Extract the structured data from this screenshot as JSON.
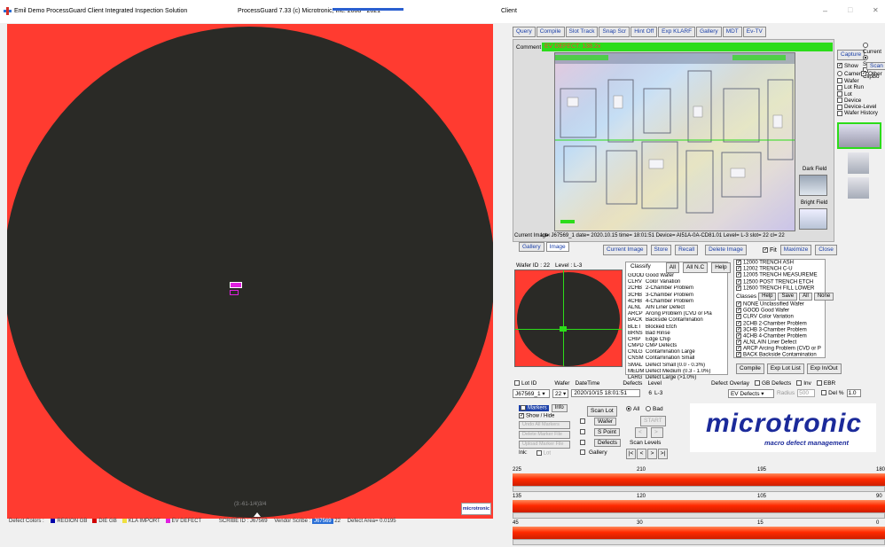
{
  "window": {
    "app_title": "Emil Demo ProcessGuard Client   Integrated Inspection Solution",
    "version_text": "ProcessGuard 7.33 (c) Microtronic, Inc. 2008 - 2021",
    "client_label": "Client",
    "minimize_glyph": "–",
    "maximize_glyph": "□",
    "close_glyph": "✕"
  },
  "wafer_view": {
    "bottom_notch_text": "(3:-61-1/4)3/4",
    "corner_logo": "microtronic"
  },
  "status_bar": {
    "defect_colors_label": "Defect Colors :",
    "legend": [
      {
        "label": "REGION GB",
        "color": "#0000aa"
      },
      {
        "label": "DIE GB",
        "color": "#d00000"
      },
      {
        "label": "KLA IMPORT",
        "color": "#f0e040"
      },
      {
        "label": "EV DEFECT",
        "color": "#e020e0"
      }
    ],
    "scribe_id": "SCRIBE ID : J67569",
    "vendor_scribe_label": "Vendor Scribe :",
    "vendor_scribe_value": "J67569",
    "slot_suffix": "22",
    "defect_area": "Defect Area= 0.0195"
  },
  "toolbar": {
    "buttons": [
      "Query",
      "Compile",
      "Slot Track",
      "Snap Scr",
      "Hint Off",
      "Exp KLARF",
      "Gallery",
      "MDT",
      "Ev-TV"
    ]
  },
  "image_panel": {
    "comment_label": "Comment",
    "comment_value": "EV DEFECT. 138.2x",
    "dark_field_label": "Dark Field",
    "bright_field_label": "Bright Field",
    "current_image_label": "Current Image:",
    "current_image_info": "lot= J67569_1  date= 2020.10.15  time= 18:01:51  Device= AI51A-0A-CD81.01  Level= L-3  slot= 22  cl= 22",
    "tabs": [
      "Gallery",
      "Image"
    ],
    "actions": [
      "Current Image",
      "Store",
      "Recall",
      "Delete Image"
    ],
    "fit_label": "Fit",
    "fit_checked": true,
    "maximize_label": "Maximize",
    "close_label": "Close"
  },
  "right_column": {
    "capture_label": "Capture",
    "options": [
      {
        "label": "Current",
        "checked": false,
        "type": "radio"
      },
      {
        "label": "Screen",
        "checked": true,
        "type": "radio"
      },
      {
        "label": "ClipBo",
        "checked": false,
        "type": "check"
      }
    ],
    "show_label": "Show",
    "show_checked": true,
    "scan_label": "Scan",
    "camera_label": "Camera",
    "other_label": "Other",
    "other_checked": true,
    "list": [
      "Wafer",
      "Lot Run",
      "Lot",
      "Device",
      "Device-Level",
      "Wafer History"
    ]
  },
  "wafer_info": {
    "wafer_id": "Wafer ID : 22",
    "level": "Level : L-3"
  },
  "classify": {
    "title": "Classify",
    "all_label": "All",
    "all_nc_label": "All N.C",
    "help_label": "Help",
    "items": [
      [
        "GOOD",
        "Good Wafer"
      ],
      [
        "CLRV",
        "Color Variation"
      ],
      [
        "2CHB",
        "2-Chamber Problem"
      ],
      [
        "3CHB",
        "3-Chamber Problem"
      ],
      [
        "4CHB",
        "4-Chamber Problem"
      ],
      [
        "ALNL",
        "AIN Liner Defect"
      ],
      [
        "ARCP",
        "Arcing Problem (CVD or Pla"
      ],
      [
        "BACK",
        "Backside Contamination"
      ],
      [
        "BLET",
        "Blocked Etch"
      ],
      [
        "BRNS",
        "Bad Rinse"
      ],
      [
        "CHIP",
        "Edge Chip"
      ],
      [
        "CMPD",
        "CMP Defects"
      ],
      [
        "CNLG",
        "Contamination Large"
      ],
      [
        "CNSM",
        "Contamination Small"
      ],
      [
        "SMAL",
        "Defect Small (0.0 - 0.3%)"
      ],
      [
        "MEDM",
        "Defect Medium (0.3 - 1.0%)"
      ],
      [
        "LARG",
        "Defect Large (>1.0%)"
      ]
    ]
  },
  "classes": {
    "recipes": [
      "12000 TRENCH ASH",
      "12002 TRENCH C-U",
      "12005 TRENCH MEASUREME",
      "12500 POST TRENCH ETCH",
      "12600 TRENCH FILL LOWER"
    ],
    "title": "Classes",
    "help_label": "Help",
    "save_label": "Save",
    "all_label": "All",
    "none_label": "None",
    "items": [
      "NONE Unclassified Wafer",
      "GOOD Good Wafer",
      "CLRV Color Variation",
      "2CHB 2-Chamber Problem",
      "3CHB 3-Chamber Problem",
      "4CHB 4-Chamber Problem",
      "ALNL AIN Liner Defect",
      "ARCP Arcing Problem (CVD or P",
      "BACK Backside Contamination"
    ]
  },
  "lower_buttons": [
    "Compile",
    "Exp Lot List",
    "Exp In/Out"
  ],
  "lot_bar": {
    "lot_id_label": "Lot ID",
    "wafer_label": "Wafer",
    "datetime_label": "DateTime",
    "defects_label": "Defects",
    "level_label": "Level",
    "defect_overlay_label": "Defect Overlay",
    "gb_defects_label": "GB Defects",
    "inv_label": "Inv",
    "ebr_label": "EBR",
    "lot_value": "J67569_1",
    "wafer_value": "22",
    "datetime_value": "2020/10/15 18:01:51",
    "defects_value": "6",
    "level_value": "L-3",
    "overlay_value": "EV Defects",
    "radius_label": "Radius",
    "radius_value": "500",
    "del_label": "Del %",
    "del_value": "1.0"
  },
  "markers": {
    "markers_label": "Markers",
    "info_label": "Info",
    "show_hide_label": "Show / Hide",
    "undo_label": "Undo All Markers",
    "delete_label": "Delete Marker File",
    "upload_label": "Upload Marker File",
    "ink_label": "Ink:",
    "lot_label": "Lot"
  },
  "scan": {
    "scan_lot": "Scan Lot",
    "wafer": "Wafer",
    "s_point": "S Point",
    "defects": "Defects",
    "gallery": "Gallery",
    "all_label": "All",
    "bad_label": "Bad",
    "start_label": "START",
    "prev_label": "<",
    "next_label": ">",
    "scan_levels": "Scan Levels",
    "nav": [
      "|<",
      "<",
      ">",
      ">|"
    ]
  },
  "logo": {
    "name": "microtronic",
    "tagline": "macro defect management"
  },
  "strips": [
    {
      "ticks": [
        "225",
        "210",
        "195",
        "180"
      ]
    },
    {
      "ticks": [
        "135",
        "120",
        "105",
        "90"
      ]
    },
    {
      "ticks": [
        "45",
        "30",
        "15",
        "0"
      ]
    }
  ]
}
